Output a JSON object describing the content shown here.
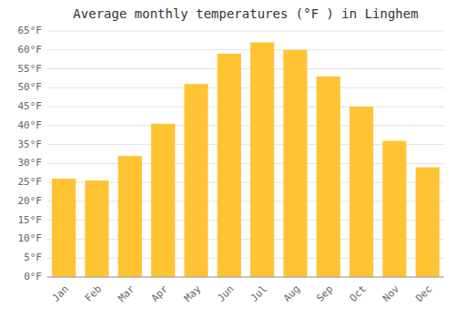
{
  "chart_data": {
    "type": "bar",
    "title": "Average monthly temperatures (°F ) in Linghem",
    "categories": [
      "Jan",
      "Feb",
      "Mar",
      "Apr",
      "May",
      "Jun",
      "Jul",
      "Aug",
      "Sep",
      "Oct",
      "Nov",
      "Dec"
    ],
    "values": [
      26,
      25.5,
      32,
      40.5,
      51,
      59,
      62,
      60,
      53,
      45,
      36,
      29
    ],
    "color": "#FFC333",
    "ylim": [
      0,
      65
    ],
    "yticks": [
      {
        "value": 0,
        "label": "0°F"
      },
      {
        "value": 5,
        "label": "5°F"
      },
      {
        "value": 10,
        "label": "10°F"
      },
      {
        "value": 15,
        "label": "15°F"
      },
      {
        "value": 20,
        "label": "20°F"
      },
      {
        "value": 25,
        "label": "25°F"
      },
      {
        "value": 30,
        "label": "30°F"
      },
      {
        "value": 35,
        "label": "35°F"
      },
      {
        "value": 40,
        "label": "40°F"
      },
      {
        "value": 45,
        "label": "45°F"
      },
      {
        "value": 50,
        "label": "50°F"
      },
      {
        "value": 55,
        "label": "55°F"
      },
      {
        "value": 60,
        "label": "60°F"
      },
      {
        "value": 65,
        "label": "65°F"
      }
    ],
    "grid": true
  }
}
